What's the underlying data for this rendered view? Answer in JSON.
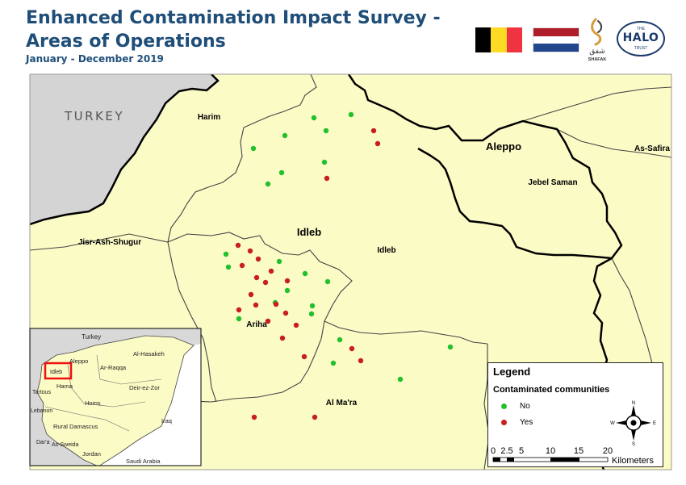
{
  "title_line1": "Enhanced Contamination Impact Survey -",
  "title_line2": "Areas of Operations",
  "subtitle": "January - December 2019",
  "logos": {
    "shafak": "SHAFAK",
    "shafak_arabic": "شفق",
    "halo_top": "THE",
    "halo_main": "HALO",
    "halo_bottom": "TRUST"
  },
  "map_labels": {
    "turkey": "TURKEY",
    "harim": "Harim",
    "aleppo": "Aleppo",
    "as_safira": "As-Safira",
    "jebel_saman": "Jebel Saman",
    "idleb_gov": "Idleb",
    "idleb_district": "Idleb",
    "jisr": "Jisr-Ash-Shugur",
    "ariha": "Ariha",
    "al_mara": "Al Ma'ra"
  },
  "inset_labels": {
    "turkey": "Turkey",
    "aleppo": "Aleppo",
    "al_hasakeh": "Al-Hasakeh",
    "idleb": "Idleb",
    "ar_raqqa": "Ar-Raqqa",
    "hama": "Hama",
    "tartous": "Tartous",
    "deir_ez_zor": "Deir-ez-Zor",
    "homs": "Homs",
    "lebanon": "Lebanon",
    "rural_damascus": "Rural Damascus",
    "iraq": "Iraq",
    "daraa": "Dar'a",
    "as_sweida": "As-Sweida",
    "jordan": "Jordan",
    "saudi_arabia": "Saudi Arabia"
  },
  "legend": {
    "title": "Legend",
    "subtitle": "Contaminated communities",
    "no_label": "No",
    "yes_label": "Yes",
    "no_color": "#22c02a",
    "yes_color": "#c81e1e"
  },
  "compass": {
    "n": "N",
    "s": "S",
    "e": "E",
    "w": "W"
  },
  "scale": {
    "ticks": [
      "0",
      "2.5",
      "5",
      "10",
      "15",
      "20"
    ],
    "unit": "Kilometers"
  },
  "communities_no": [
    [
      435,
      142
    ],
    [
      389,
      146
    ],
    [
      404,
      162
    ],
    [
      353,
      168
    ],
    [
      314,
      184
    ],
    [
      402,
      201
    ],
    [
      349,
      214
    ],
    [
      332,
      228
    ],
    [
      346,
      324
    ],
    [
      280,
      315
    ],
    [
      283,
      331
    ],
    [
      378,
      339
    ],
    [
      406,
      349
    ],
    [
      356,
      360
    ],
    [
      341,
      375
    ],
    [
      387,
      379
    ],
    [
      386,
      389
    ],
    [
      296,
      395
    ],
    [
      421,
      421
    ],
    [
      413,
      450
    ],
    [
      558,
      430
    ],
    [
      496,
      470
    ]
  ],
  "communities_yes": [
    [
      463,
      162
    ],
    [
      468,
      178
    ],
    [
      405,
      221
    ],
    [
      295,
      304
    ],
    [
      310,
      311
    ],
    [
      320,
      321
    ],
    [
      300,
      329
    ],
    [
      336,
      336
    ],
    [
      318,
      344
    ],
    [
      356,
      348
    ],
    [
      329,
      350
    ],
    [
      311,
      365
    ],
    [
      342,
      377
    ],
    [
      296,
      384
    ],
    [
      317,
      378
    ],
    [
      354,
      388
    ],
    [
      332,
      398
    ],
    [
      367,
      403
    ],
    [
      350,
      419
    ],
    [
      436,
      432
    ],
    [
      447,
      447
    ],
    [
      377,
      442
    ],
    [
      315,
      517
    ],
    [
      390,
      517
    ]
  ]
}
